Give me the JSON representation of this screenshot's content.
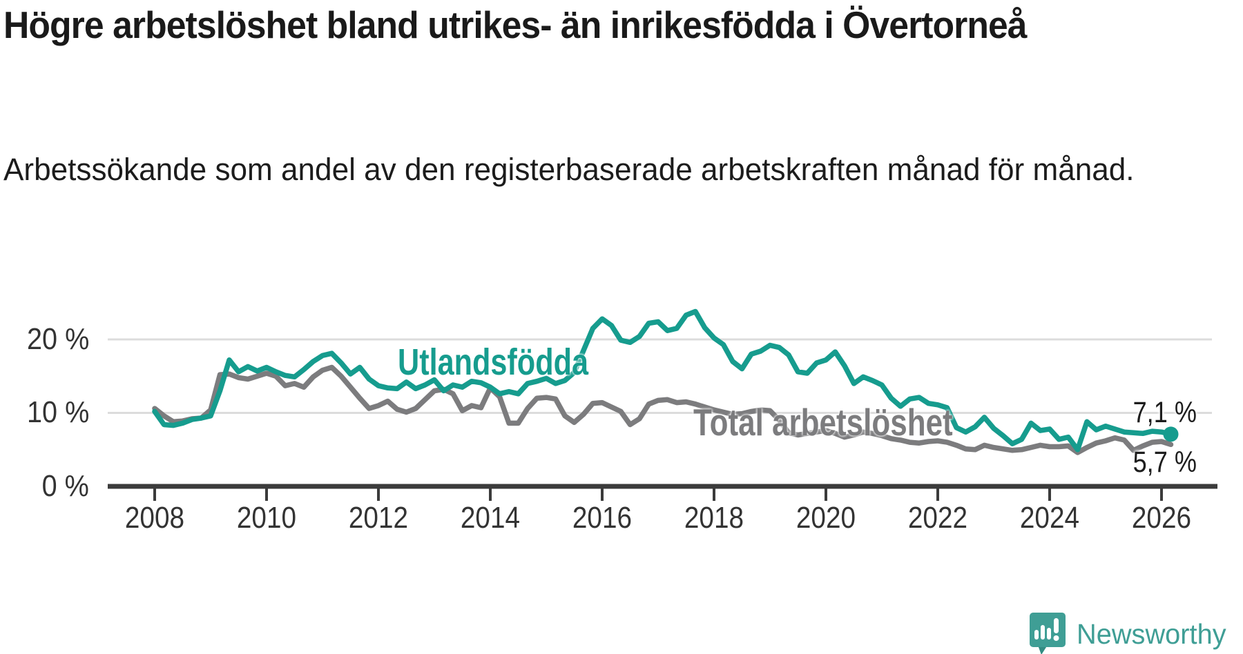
{
  "header": {
    "title": "Högre arbetslöshet bland utrikes- än inrikesfödda i Övertorneå",
    "subtitle": "Arbetssökande som andel av den registerbaserade arbetskraften månad för månad."
  },
  "branding": {
    "logo_text": "Newsworthy",
    "logo_color": "#3f9e95"
  },
  "chart_data": {
    "type": "line",
    "title": "Högre arbetslöshet bland utrikes- än inrikesfödda i Övertorneå",
    "xlabel": "",
    "ylabel": "Arbetssökande som andel av den registerbaserade arbetskraften",
    "x_start_year": 2008.0,
    "x_step_years": 0.1666667,
    "xlim": [
      2007.8,
      2026.8
    ],
    "ylim": [
      0,
      25
    ],
    "grid": true,
    "legend_position": "inline-labels",
    "y_ticks": [
      {
        "value": 0,
        "label": "0 %"
      },
      {
        "value": 10,
        "label": "10 %"
      },
      {
        "value": 20,
        "label": "20 %"
      }
    ],
    "x_ticks": [
      {
        "value": 2008,
        "label": "2008"
      },
      {
        "value": 2010,
        "label": "2010"
      },
      {
        "value": 2012,
        "label": "2012"
      },
      {
        "value": 2014,
        "label": "2014"
      },
      {
        "value": 2016,
        "label": "2016"
      },
      {
        "value": 2018,
        "label": "2018"
      },
      {
        "value": 2020,
        "label": "2020"
      },
      {
        "value": 2022,
        "label": "2022"
      },
      {
        "value": 2024,
        "label": "2024"
      },
      {
        "value": 2026,
        "label": "2026"
      }
    ],
    "series": [
      {
        "name": "Total arbetslöshet",
        "color": "#7c7c7e",
        "end_label": "5,7 %",
        "end_value": 5.7,
        "end_dot": false,
        "values": [
          10.6,
          9.6,
          8.8,
          8.9,
          9.2,
          9.3,
          10.4,
          15.2,
          15.3,
          14.8,
          14.6,
          15.0,
          15.4,
          15.0,
          13.7,
          14.0,
          13.5,
          14.9,
          15.8,
          16.2,
          15.0,
          13.5,
          12.0,
          10.6,
          11.0,
          11.6,
          10.5,
          10.1,
          10.6,
          11.8,
          13.0,
          13.2,
          12.6,
          10.3,
          11.0,
          10.7,
          13.4,
          12.2,
          8.6,
          8.6,
          10.6,
          12.0,
          12.1,
          11.9,
          9.6,
          8.7,
          9.8,
          11.3,
          11.4,
          10.8,
          10.2,
          8.4,
          9.2,
          11.2,
          11.7,
          11.8,
          11.4,
          11.5,
          11.2,
          10.8,
          10.4,
          10.1,
          9.8,
          9.9,
          10.2,
          10.4,
          10.3,
          9.0,
          7.3,
          7.0,
          7.2,
          7.4,
          7.6,
          7.2,
          6.7,
          7.0,
          7.4,
          7.2,
          6.9,
          6.5,
          6.3,
          6.0,
          5.9,
          6.1,
          6.2,
          6.0,
          5.6,
          5.1,
          5.0,
          5.6,
          5.3,
          5.1,
          4.9,
          5.0,
          5.3,
          5.6,
          5.4,
          5.4,
          5.5,
          4.6,
          5.3,
          5.9,
          6.2,
          6.6,
          6.3,
          4.9,
          5.5,
          6.0,
          6.1,
          5.7
        ]
      },
      {
        "name": "Utlandsfödda",
        "color": "#169c8e",
        "end_label": "7,1 %",
        "end_value": 7.1,
        "end_dot": true,
        "values": [
          10.2,
          8.4,
          8.3,
          8.6,
          9.1,
          9.3,
          9.6,
          13.0,
          17.2,
          15.6,
          16.3,
          15.7,
          16.2,
          15.6,
          15.1,
          14.9,
          15.9,
          17.0,
          17.8,
          18.1,
          16.8,
          15.3,
          16.2,
          14.6,
          13.7,
          13.4,
          13.3,
          14.2,
          13.3,
          13.8,
          14.5,
          13.0,
          13.8,
          13.5,
          14.3,
          14.1,
          13.5,
          12.6,
          12.9,
          12.6,
          14.0,
          14.3,
          14.7,
          14.0,
          14.4,
          15.5,
          18.5,
          21.5,
          22.8,
          21.9,
          19.9,
          19.6,
          20.4,
          22.2,
          22.4,
          21.2,
          21.5,
          23.3,
          23.8,
          21.6,
          20.2,
          19.3,
          17.0,
          16.0,
          18.0,
          18.4,
          19.2,
          18.9,
          17.9,
          15.6,
          15.4,
          16.8,
          17.2,
          18.3,
          16.4,
          14.0,
          14.9,
          14.4,
          13.8,
          12.0,
          10.9,
          11.9,
          12.1,
          11.3,
          11.1,
          10.7,
          8.0,
          7.4,
          8.1,
          9.4,
          7.9,
          6.9,
          5.8,
          6.4,
          8.6,
          7.6,
          7.8,
          6.4,
          6.7,
          5.0,
          8.8,
          7.7,
          8.2,
          7.8,
          7.4,
          7.3,
          7.2,
          7.5,
          7.4,
          7.1
        ]
      }
    ]
  }
}
